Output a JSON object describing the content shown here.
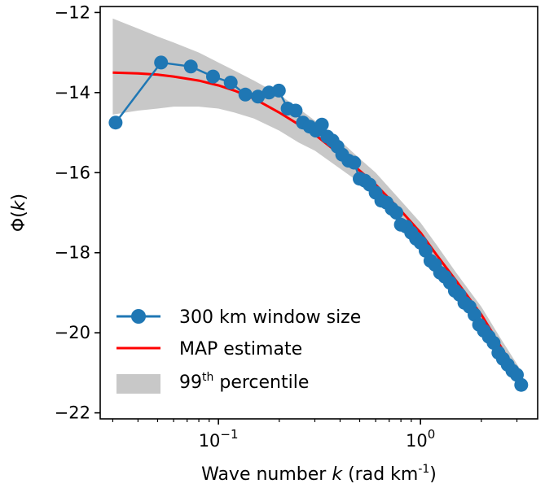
{
  "chart_data": {
    "type": "line",
    "xscale": "log",
    "xlim": [
      0.026,
      3.8
    ],
    "ylim": [
      -22.15,
      -11.85
    ],
    "grid": false,
    "legend_position": "lower-left",
    "xlabel": {
      "pre": "Wave number ",
      "var": "k",
      "post": " (rad km",
      "sup": "-1",
      "close": ")"
    },
    "ylabel": {
      "pre": "Φ(",
      "var": "k",
      "post": ")"
    },
    "yticks": [
      {
        "value": -12,
        "label": "−12"
      },
      {
        "value": -14,
        "label": "−14"
      },
      {
        "value": -16,
        "label": "−16"
      },
      {
        "value": -18,
        "label": "−18"
      },
      {
        "value": -20,
        "label": "−20"
      },
      {
        "value": -22,
        "label": "−22"
      }
    ],
    "xticks": [
      {
        "value": 0.1,
        "base": "10",
        "exp": "−1"
      },
      {
        "value": 1.0,
        "base": "10",
        "exp": "0"
      }
    ],
    "legend": {
      "series_label": "300 km window size",
      "map_label": "MAP estimate",
      "band_label_pre": "99",
      "band_label_sup": "th",
      "band_label_post": " percentile"
    },
    "colors": {
      "series": "#1f77b4",
      "map": "#ff0000",
      "band": "#c8c8c8"
    },
    "series": [
      {
        "name": "300 km window size",
        "x": [
          0.031,
          0.052,
          0.073,
          0.094,
          0.115,
          0.136,
          0.157,
          0.178,
          0.199,
          0.22,
          0.241,
          0.262,
          0.283,
          0.304,
          0.325,
          0.346,
          0.367,
          0.388,
          0.41,
          0.44,
          0.47,
          0.5,
          0.53,
          0.56,
          0.6,
          0.64,
          0.68,
          0.72,
          0.76,
          0.8,
          0.85,
          0.9,
          0.95,
          1.0,
          1.06,
          1.12,
          1.18,
          1.25,
          1.32,
          1.4,
          1.48,
          1.56,
          1.65,
          1.75,
          1.85,
          1.95,
          2.06,
          2.18,
          2.3,
          2.43,
          2.56,
          2.7,
          2.85,
          3.0,
          3.15
        ],
        "y": [
          -14.75,
          -13.25,
          -13.35,
          -13.6,
          -13.75,
          -14.05,
          -14.1,
          -14.0,
          -13.95,
          -14.4,
          -14.45,
          -14.75,
          -14.85,
          -14.95,
          -14.8,
          -15.1,
          -15.2,
          -15.35,
          -15.55,
          -15.7,
          -15.75,
          -16.15,
          -16.2,
          -16.3,
          -16.5,
          -16.7,
          -16.75,
          -16.9,
          -17.0,
          -17.3,
          -17.35,
          -17.5,
          -17.65,
          -17.75,
          -17.95,
          -18.2,
          -18.3,
          -18.5,
          -18.6,
          -18.75,
          -18.95,
          -19.05,
          -19.25,
          -19.35,
          -19.55,
          -19.8,
          -19.95,
          -20.1,
          -20.25,
          -20.5,
          -20.65,
          -20.8,
          -20.95,
          -21.05,
          -21.3
        ]
      },
      {
        "name": "MAP estimate",
        "x": [
          0.03,
          0.04,
          0.05,
          0.06,
          0.08,
          0.1,
          0.12,
          0.15,
          0.2,
          0.25,
          0.3,
          0.4,
          0.5,
          0.6,
          0.8,
          1.0,
          1.2,
          1.5,
          2.0,
          2.5,
          3.15
        ],
        "y": [
          -13.5,
          -13.52,
          -13.55,
          -13.6,
          -13.7,
          -13.82,
          -13.95,
          -14.15,
          -14.5,
          -14.8,
          -15.05,
          -15.55,
          -15.95,
          -16.3,
          -16.95,
          -17.5,
          -18.05,
          -18.7,
          -19.55,
          -20.35,
          -21.2
        ]
      },
      {
        "name": "99th percentile",
        "x": [
          0.03,
          0.04,
          0.05,
          0.06,
          0.08,
          0.1,
          0.12,
          0.15,
          0.2,
          0.25,
          0.3,
          0.4,
          0.5,
          0.6,
          0.8,
          1.0,
          1.2,
          1.5,
          2.0,
          2.5,
          3.15
        ],
        "upper": [
          -12.15,
          -12.4,
          -12.6,
          -12.75,
          -13.0,
          -13.25,
          -13.45,
          -13.7,
          -14.05,
          -14.4,
          -14.7,
          -15.2,
          -15.65,
          -16.0,
          -16.7,
          -17.25,
          -17.8,
          -18.5,
          -19.35,
          -20.15,
          -20.95
        ],
        "lower": [
          -14.55,
          -14.45,
          -14.4,
          -14.35,
          -14.35,
          -14.4,
          -14.5,
          -14.65,
          -14.95,
          -15.25,
          -15.45,
          -15.9,
          -16.25,
          -16.55,
          -17.2,
          -17.75,
          -18.25,
          -18.9,
          -19.75,
          -20.55,
          -21.45
        ]
      }
    ]
  }
}
